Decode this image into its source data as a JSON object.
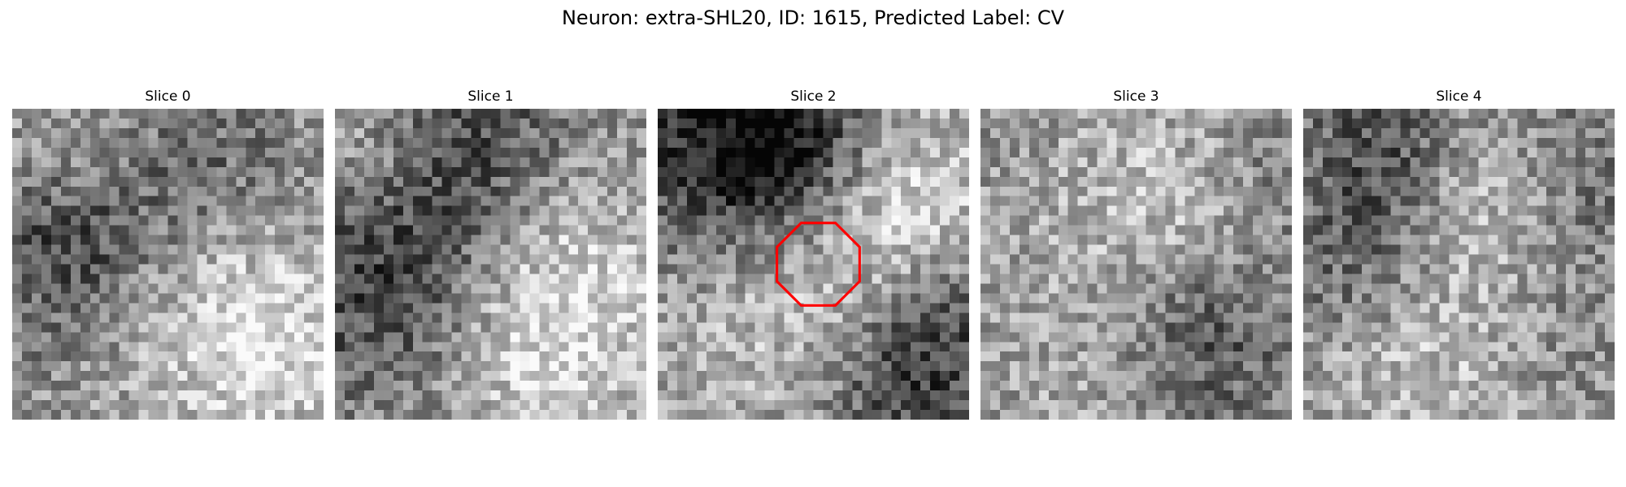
{
  "figure": {
    "title": "Neuron: extra-SHL20, ID: 1615, Predicted Label: CV"
  },
  "slices": [
    {
      "label": "Slice 0",
      "seed": 11
    },
    {
      "label": "Slice 1",
      "seed": 23
    },
    {
      "label": "Slice 2",
      "seed": 37,
      "has_roi": true
    },
    {
      "label": "Slice 3",
      "seed": 51
    },
    {
      "label": "Slice 4",
      "seed": 67
    }
  ],
  "roi": {
    "shape": "octagon",
    "color": "#ff0000",
    "slice_index": 2
  },
  "colors": {
    "background": "#ffffff",
    "colormap": "gray"
  }
}
